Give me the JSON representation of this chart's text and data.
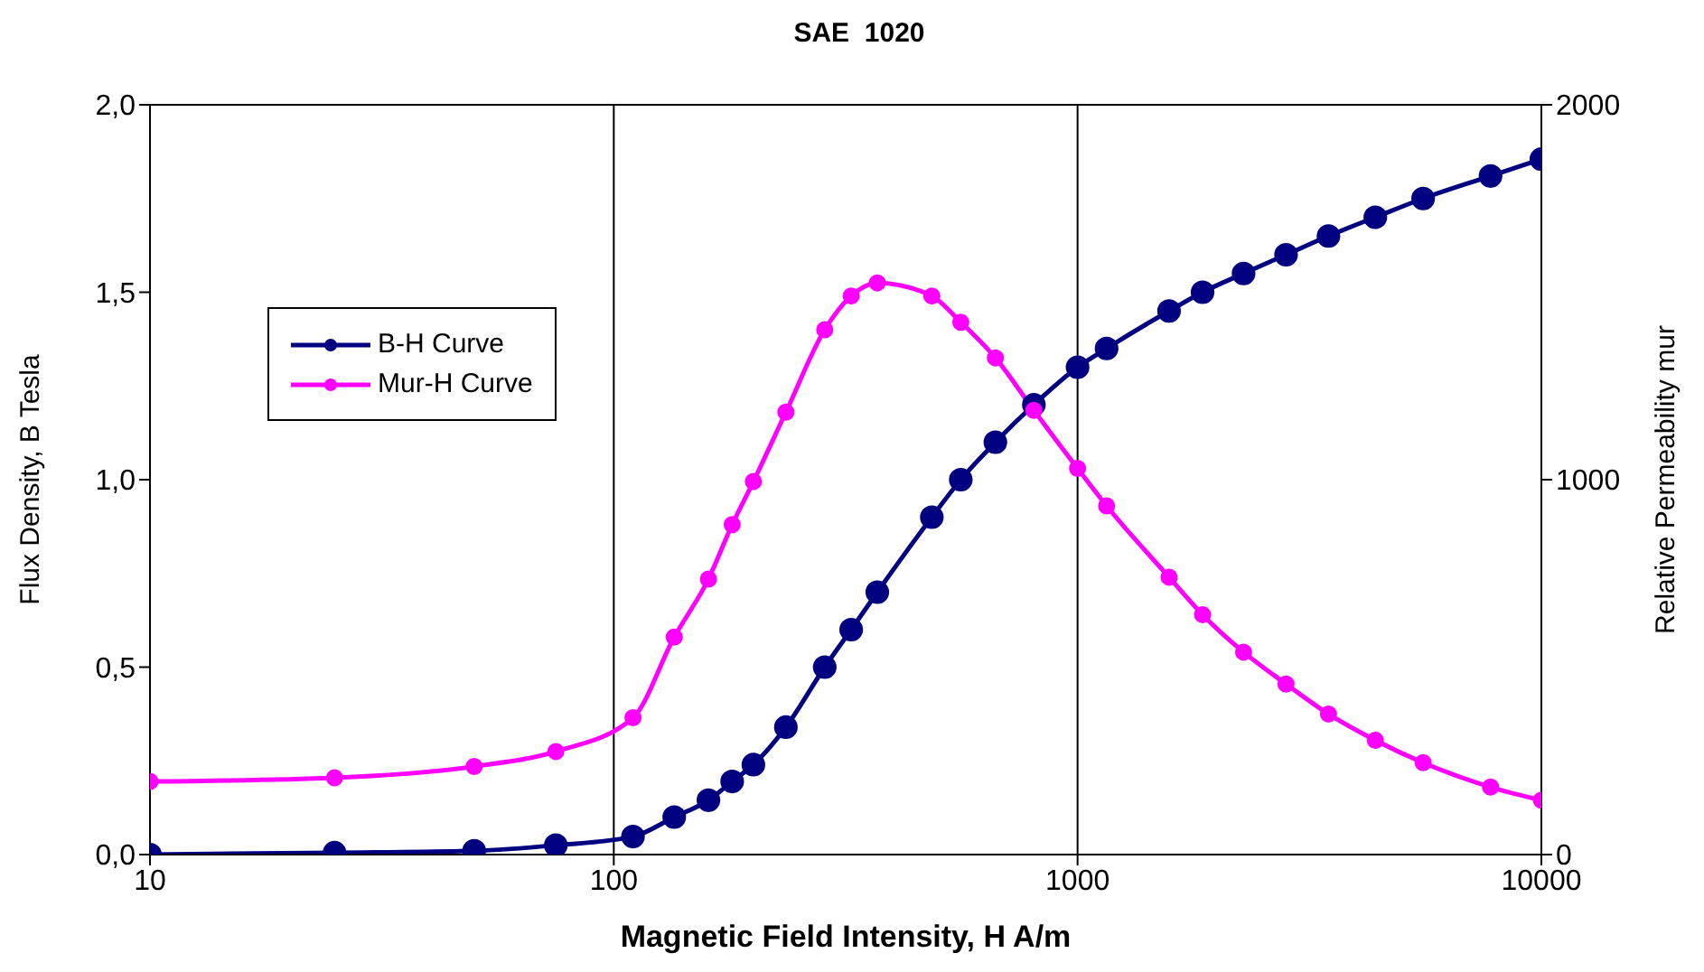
{
  "chart_data": {
    "type": "line",
    "title": "SAE  1020",
    "xlabel": "Magnetic Field Intensity,  H A/m",
    "ylabel": "Flux Density,  B Tesla",
    "y2label": "Relative  Permeability mur",
    "x": [
      10,
      25,
      50,
      75,
      110,
      135,
      160,
      180,
      200,
      235,
      285,
      325,
      370,
      485,
      560,
      665,
      805,
      1000,
      1155,
      1575,
      1860,
      2280,
      2815,
      3475,
      4385,
      5560,
      7770,
      10000
    ],
    "series": [
      {
        "name": "B-H Curve",
        "color": "#000080",
        "values": [
          0,
          0.005,
          0.01,
          0.025,
          0.048,
          0.1,
          0.145,
          0.195,
          0.24,
          0.34,
          0.5,
          0.6,
          0.7,
          0.9,
          1.0,
          1.1,
          1.2,
          1.3,
          1.35,
          1.45,
          1.5,
          1.55,
          1.6,
          1.65,
          1.7,
          1.75,
          1.81,
          1.855
        ]
      },
      {
        "name": "Mur-H Curve",
        "color": "#ff00ff",
        "axis": "y2",
        "values": [
          195,
          205,
          235,
          275,
          365,
          580,
          735,
          880,
          995,
          1180,
          1400,
          1490,
          1525,
          1490,
          1420,
          1325,
          1185,
          1030,
          930,
          740,
          640,
          540,
          455,
          375,
          305,
          245,
          180,
          145
        ]
      }
    ],
    "log": "x",
    "xlim": [
      10,
      10000
    ],
    "xticks": [
      10,
      100,
      1000,
      10000
    ],
    "ylim": [
      0,
      2
    ],
    "yticks": [
      {
        "value": 0,
        "label": "0,0"
      },
      {
        "value": 0.5,
        "label": "0,5"
      },
      {
        "value": 1,
        "label": "1,0"
      },
      {
        "value": 1.5,
        "label": "1,5"
      },
      {
        "value": 2,
        "label": "2,0"
      }
    ],
    "y2lim": [
      0,
      2000
    ],
    "y2ticks": [
      0,
      1000,
      2000
    ],
    "grid": true,
    "legend": "top left",
    "marker": "circle",
    "line_style": "solid"
  }
}
